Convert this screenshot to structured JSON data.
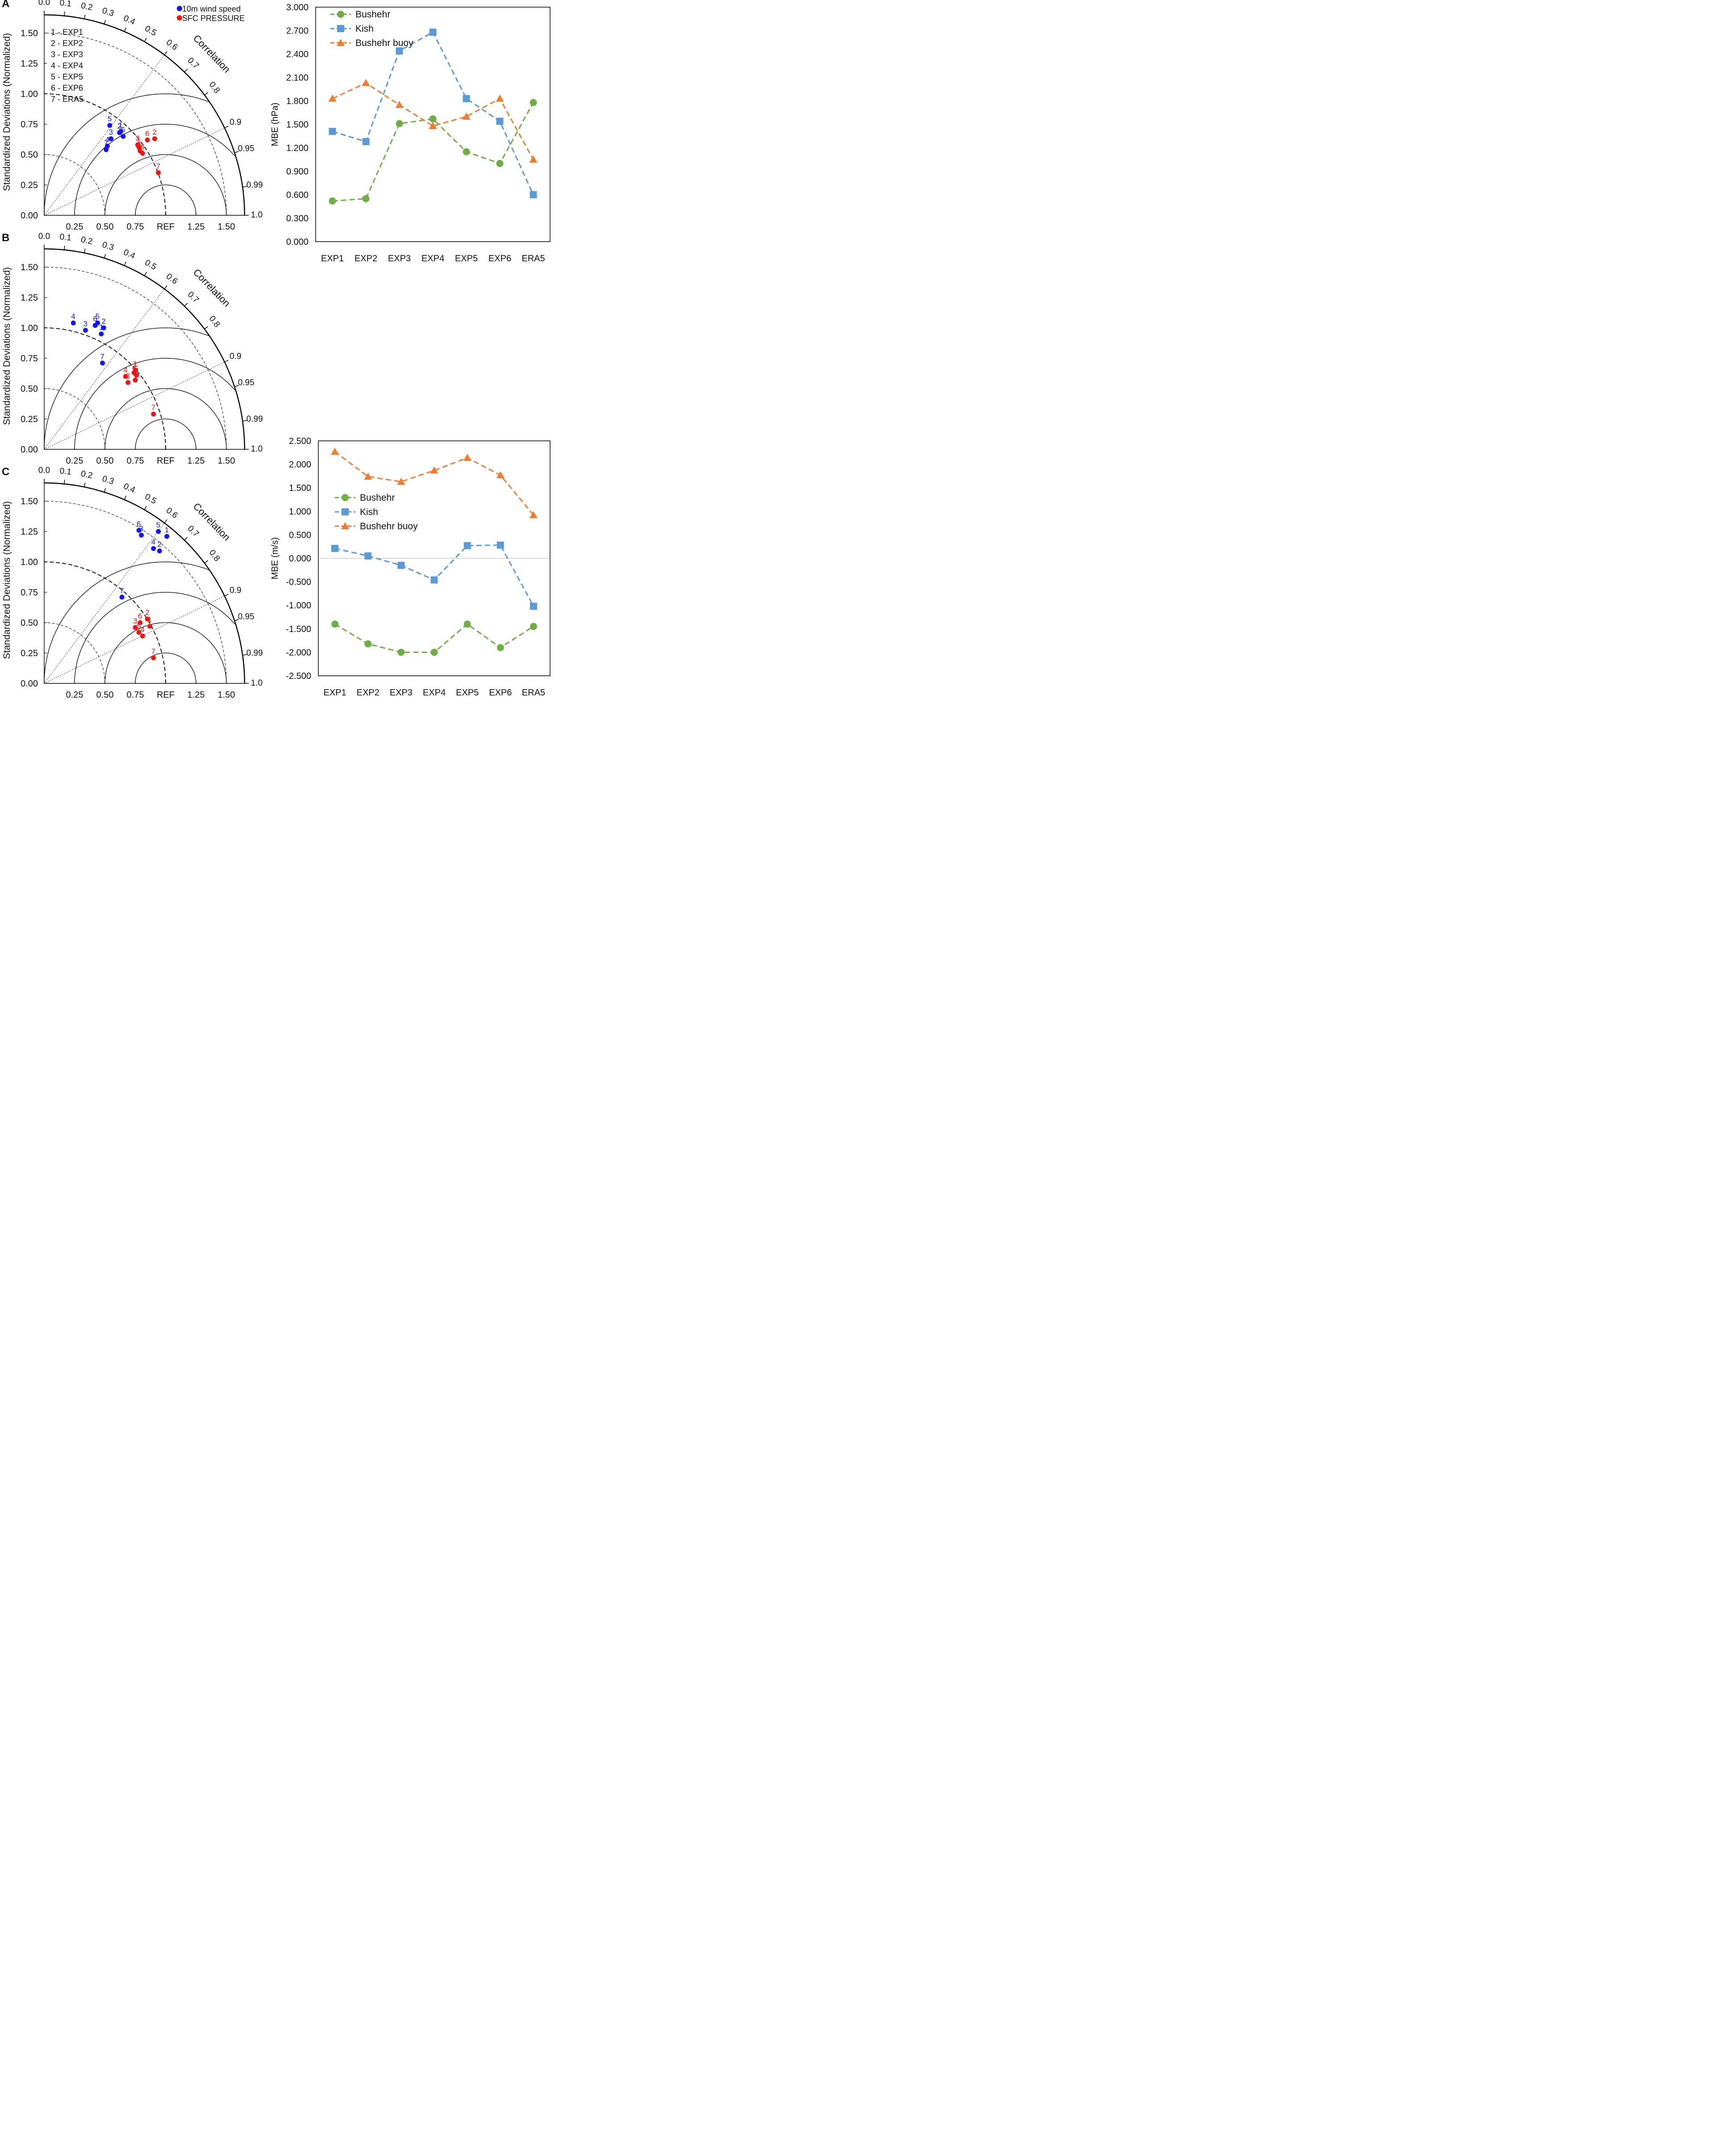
{
  "chart_data": [
    {
      "type": "taylor",
      "panel_label": "A",
      "ylabel": "Standardized Deviations (Normalized)",
      "correlation_label": "Correlation",
      "x_ticks": [
        "0.25",
        "0.50",
        "0.75",
        "REF",
        "1.25",
        "1.50"
      ],
      "y_ticks": [
        "0.00",
        "0.25",
        "0.50",
        "0.75",
        "1.00",
        "1.25",
        "1.50"
      ],
      "correlation_ticks": [
        "0.0",
        "0.1",
        "0.2",
        "0.3",
        "0.4",
        "0.5",
        "0.6",
        "0.7",
        "0.8",
        "0.9",
        "0.95",
        "0.99",
        "1.0"
      ],
      "legend_series": [
        "10m wind speed",
        "SFC PRESSURE"
      ],
      "legend_experiments": [
        "1 - EXP1",
        "2 - EXP2",
        "3 - EXP3",
        "4 - EXP4",
        "5 - EXP5",
        "6 - EXP6",
        "7 - ERA5"
      ],
      "series": [
        {
          "name": "10m wind speed",
          "color": "#1515ee",
          "points": [
            {
              "label": "1",
              "x": 0.63,
              "y": 0.69
            },
            {
              "label": "2",
              "x": 0.62,
              "y": 0.68
            },
            {
              "label": "3",
              "x": 0.55,
              "y": 0.63
            },
            {
              "label": "4",
              "x": 0.52,
              "y": 0.57
            },
            {
              "label": "5",
              "x": 0.54,
              "y": 0.74
            },
            {
              "label": "6",
              "x": 0.65,
              "y": 0.65
            },
            {
              "label": "7",
              "x": 0.51,
              "y": 0.54
            }
          ]
        },
        {
          "name": "SFC PRESSURE",
          "color": "#ee1515",
          "points": [
            {
              "label": "1",
              "x": 0.78,
              "y": 0.56
            },
            {
              "label": "2",
              "x": 0.91,
              "y": 0.63
            },
            {
              "label": "3",
              "x": 0.77,
              "y": 0.58
            },
            {
              "label": "4",
              "x": 0.81,
              "y": 0.51
            },
            {
              "label": "5",
              "x": 0.79,
              "y": 0.53
            },
            {
              "label": "6",
              "x": 0.85,
              "y": 0.62
            },
            {
              "label": "7",
              "x": 0.94,
              "y": 0.35
            }
          ]
        }
      ]
    },
    {
      "type": "taylor",
      "panel_label": "B",
      "ylabel": "Standardized Deviations (Normalized)",
      "correlation_label": "Correlation",
      "x_ticks": [
        "0.25",
        "0.50",
        "0.75",
        "REF",
        "1.25",
        "1.50"
      ],
      "y_ticks": [
        "0.00",
        "0.25",
        "0.50",
        "0.75",
        "1.00",
        "1.25",
        "1.50"
      ],
      "correlation_ticks": [
        "0.0",
        "0.1",
        "0.2",
        "0.3",
        "0.4",
        "0.5",
        "0.6",
        "0.7",
        "0.8",
        "0.9",
        "0.95",
        "0.99",
        "1.0"
      ],
      "series": [
        {
          "name": "10m wind speed",
          "color": "#1515ee",
          "points": [
            {
              "label": "1",
              "x": 0.47,
              "y": 0.95
            },
            {
              "label": "2",
              "x": 0.49,
              "y": 1.0
            },
            {
              "label": "3",
              "x": 0.34,
              "y": 0.98
            },
            {
              "label": "4",
              "x": 0.24,
              "y": 1.04
            },
            {
              "label": "5",
              "x": 0.44,
              "y": 1.04
            },
            {
              "label": "6",
              "x": 0.42,
              "y": 1.02
            },
            {
              "label": "7",
              "x": 0.48,
              "y": 0.71
            }
          ]
        },
        {
          "name": "SFC PRESSURE",
          "color": "#ee1515",
          "points": [
            {
              "label": "1",
              "x": 0.75,
              "y": 0.65
            },
            {
              "label": "2",
              "x": 0.74,
              "y": 0.63
            },
            {
              "label": "3",
              "x": 0.69,
              "y": 0.55
            },
            {
              "label": "4",
              "x": 0.67,
              "y": 0.6
            },
            {
              "label": "5",
              "x": 0.76,
              "y": 0.61
            },
            {
              "label": "6",
              "x": 0.75,
              "y": 0.57
            },
            {
              "label": "7",
              "x": 0.9,
              "y": 0.29
            }
          ]
        }
      ]
    },
    {
      "type": "taylor",
      "panel_label": "C",
      "ylabel": "Standardized Deviations (Normalized)",
      "correlation_label": "Correlation",
      "x_ticks": [
        "0.25",
        "0.50",
        "0.75",
        "REF",
        "1.25",
        "1.50"
      ],
      "y_ticks": [
        "0.00",
        "0.25",
        "0.50",
        "0.75",
        "1.00",
        "1.25",
        "1.50"
      ],
      "correlation_ticks": [
        "0.0",
        "0.1",
        "0.2",
        "0.3",
        "0.4",
        "0.5",
        "0.6",
        "0.7",
        "0.8",
        "0.9",
        "0.95",
        "0.99",
        "1.0"
      ],
      "series": [
        {
          "name": "10m wind speed",
          "color": "#1515ee",
          "points": [
            {
              "label": "1",
              "x": 1.01,
              "y": 1.21
            },
            {
              "label": "2",
              "x": 0.95,
              "y": 1.09
            },
            {
              "label": "3",
              "x": 0.8,
              "y": 1.22
            },
            {
              "label": "4",
              "x": 0.9,
              "y": 1.11
            },
            {
              "label": "5",
              "x": 0.94,
              "y": 1.25
            },
            {
              "label": "6",
              "x": 0.78,
              "y": 1.26
            },
            {
              "label": "7",
              "x": 0.64,
              "y": 0.71
            }
          ]
        },
        {
          "name": "SFC PRESSURE",
          "color": "#ee1515",
          "points": [
            {
              "label": "1",
              "x": 0.87,
              "y": 0.47
            },
            {
              "label": "2",
              "x": 0.85,
              "y": 0.53
            },
            {
              "label": "3",
              "x": 0.75,
              "y": 0.46
            },
            {
              "label": "4",
              "x": 0.81,
              "y": 0.39
            },
            {
              "label": "5",
              "x": 0.78,
              "y": 0.42
            },
            {
              "label": "6",
              "x": 0.79,
              "y": 0.5
            },
            {
              "label": "7",
              "x": 0.9,
              "y": 0.21
            }
          ]
        }
      ]
    },
    {
      "type": "line",
      "ylabel": "MBE (hPa)",
      "categories": [
        "EXP1",
        "EXP2",
        "EXP3",
        "EXP4",
        "EXP5",
        "EXP6",
        "ERA5"
      ],
      "ylim": [
        0,
        3
      ],
      "y_ticks": [
        "0.000",
        "0.300",
        "0.600",
        "0.900",
        "1.200",
        "1.500",
        "1.800",
        "2.100",
        "2.400",
        "2.700",
        "3.000"
      ],
      "legend_position": "top-left",
      "series": [
        {
          "name": "Bushehr",
          "color": "#70ad47",
          "marker": "circle",
          "values": [
            0.52,
            0.55,
            1.51,
            1.57,
            1.15,
            1.0,
            1.78
          ]
        },
        {
          "name": "Kish",
          "color": "#5b9bd5",
          "marker": "square",
          "values": [
            1.41,
            1.28,
            2.44,
            2.68,
            1.83,
            1.54,
            0.6
          ]
        },
        {
          "name": "Bushehr buoy",
          "color": "#ed7d31",
          "marker": "triangle",
          "values": [
            1.83,
            2.03,
            1.75,
            1.48,
            1.6,
            1.83,
            1.05
          ]
        }
      ]
    },
    {
      "type": "line",
      "ylabel": "MBE (m/s)",
      "categories": [
        "EXP1",
        "EXP2",
        "EXP3",
        "EXP4",
        "EXP5",
        "EXP6",
        "ERA5"
      ],
      "ylim": [
        -2.5,
        2.5
      ],
      "y_ticks": [
        "-2.500",
        "-2.000",
        "-1.500",
        "-1.000",
        "-0.500",
        "0.000",
        "0.500",
        "1.000",
        "1.500",
        "2.000",
        "2.500"
      ],
      "legend_position": "middle-left",
      "series": [
        {
          "name": "Bushehr",
          "color": "#70ad47",
          "marker": "circle",
          "values": [
            -1.4,
            -1.82,
            -2.0,
            -2.0,
            -1.4,
            -1.9,
            -1.45
          ]
        },
        {
          "name": "Kish",
          "color": "#5b9bd5",
          "marker": "square",
          "values": [
            0.21,
            0.05,
            -0.15,
            -0.46,
            0.27,
            0.28,
            -1.02
          ]
        },
        {
          "name": "Bushehr buoy",
          "color": "#ed7d31",
          "marker": "triangle",
          "values": [
            2.27,
            1.74,
            1.63,
            1.87,
            2.14,
            1.77,
            0.92
          ]
        }
      ]
    }
  ]
}
